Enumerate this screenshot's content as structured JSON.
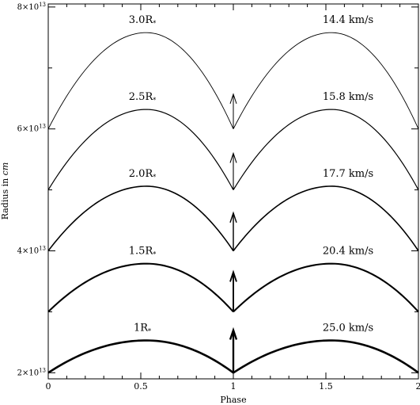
{
  "chart_data": {
    "type": "line",
    "title": "",
    "xlabel": "Phase",
    "ylabel": "Radius in cm",
    "xlim": [
      0,
      2
    ],
    "ylim": [
      19000000000000.0,
      80500000000000.0
    ],
    "grid": false,
    "x_ticks": [
      {
        "value": 0,
        "label": "0"
      },
      {
        "value": 0.5,
        "label": "0.5"
      },
      {
        "value": 1,
        "label": "1"
      },
      {
        "value": 1.5,
        "label": "1.5"
      },
      {
        "value": 2,
        "label": "2"
      }
    ],
    "y_ticks": [
      {
        "value": 20000000000000.0,
        "mantissa": "2",
        "exponent": "13"
      },
      {
        "value": 40000000000000.0,
        "mantissa": "4",
        "exponent": "13"
      },
      {
        "value": 60000000000000.0,
        "mantissa": "6",
        "exponent": "13"
      },
      {
        "value": 80000000000000.0,
        "mantissa": "8",
        "exponent": "13"
      }
    ],
    "series": [
      {
        "name": "1R*",
        "velocity": "25.0 km/s",
        "base_radius": 20000000000000.0,
        "peak_radius": 25300000000000.0,
        "peak_phase": 0.53,
        "arrow_top": 27000000000000.0
      },
      {
        "name": "1.5R*",
        "velocity": "20.4 km/s",
        "base_radius": 30000000000000.0,
        "peak_radius": 37900000000000.0,
        "peak_phase": 0.53,
        "arrow_top": 36500000000000.0
      },
      {
        "name": "2.0R*",
        "velocity": "17.7 km/s",
        "base_radius": 40000000000000.0,
        "peak_radius": 50600000000000.0,
        "peak_phase": 0.53,
        "arrow_top": 46200000000000.0
      },
      {
        "name": "2.5R*",
        "velocity": "15.8 km/s",
        "base_radius": 50000000000000.0,
        "peak_radius": 63200000000000.0,
        "peak_phase": 0.53,
        "arrow_top": 56000000000000.0
      },
      {
        "name": "3.0R*",
        "velocity": "14.4 km/s",
        "base_radius": 60000000000000.0,
        "peak_radius": 75800000000000.0,
        "peak_phase": 0.53,
        "arrow_top": 65700000000000.0
      }
    ]
  }
}
